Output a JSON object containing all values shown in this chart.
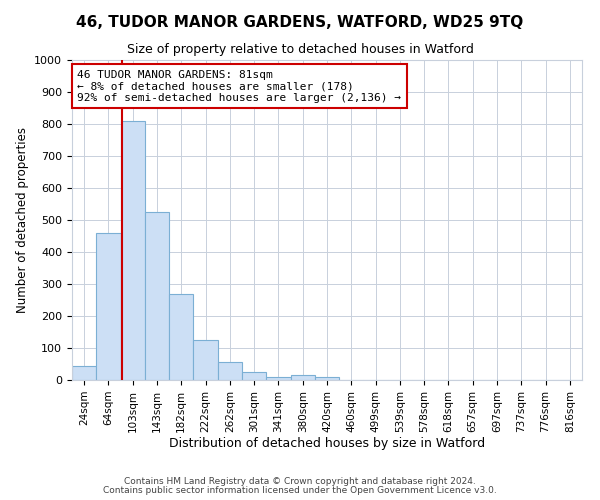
{
  "title": "46, TUDOR MANOR GARDENS, WATFORD, WD25 9TQ",
  "subtitle": "Size of property relative to detached houses in Watford",
  "xlabel": "Distribution of detached houses by size in Watford",
  "ylabel": "Number of detached properties",
  "bar_color": "#ccdff5",
  "bar_edge_color": "#7bafd4",
  "categories": [
    "24sqm",
    "64sqm",
    "103sqm",
    "143sqm",
    "182sqm",
    "222sqm",
    "262sqm",
    "301sqm",
    "341sqm",
    "380sqm",
    "420sqm",
    "460sqm",
    "499sqm",
    "539sqm",
    "578sqm",
    "618sqm",
    "657sqm",
    "697sqm",
    "737sqm",
    "776sqm",
    "816sqm"
  ],
  "values": [
    45,
    460,
    810,
    525,
    270,
    125,
    55,
    25,
    10,
    15,
    10,
    0,
    0,
    0,
    0,
    0,
    0,
    0,
    0,
    0,
    0
  ],
  "ylim": [
    0,
    1000
  ],
  "yticks": [
    0,
    100,
    200,
    300,
    400,
    500,
    600,
    700,
    800,
    900,
    1000
  ],
  "property_line_x": 1.57,
  "annotation_line1": "46 TUDOR MANOR GARDENS: 81sqm",
  "annotation_line2": "← 8% of detached houses are smaller (178)",
  "annotation_line3": "92% of semi-detached houses are larger (2,136) →",
  "footnote1": "Contains HM Land Registry data © Crown copyright and database right 2024.",
  "footnote2": "Contains public sector information licensed under the Open Government Licence v3.0.",
  "grid_color": "#c8d0dc",
  "annotation_box_color": "#cc0000",
  "background_color": "#ffffff",
  "title_fontsize": 11,
  "subtitle_fontsize": 9
}
